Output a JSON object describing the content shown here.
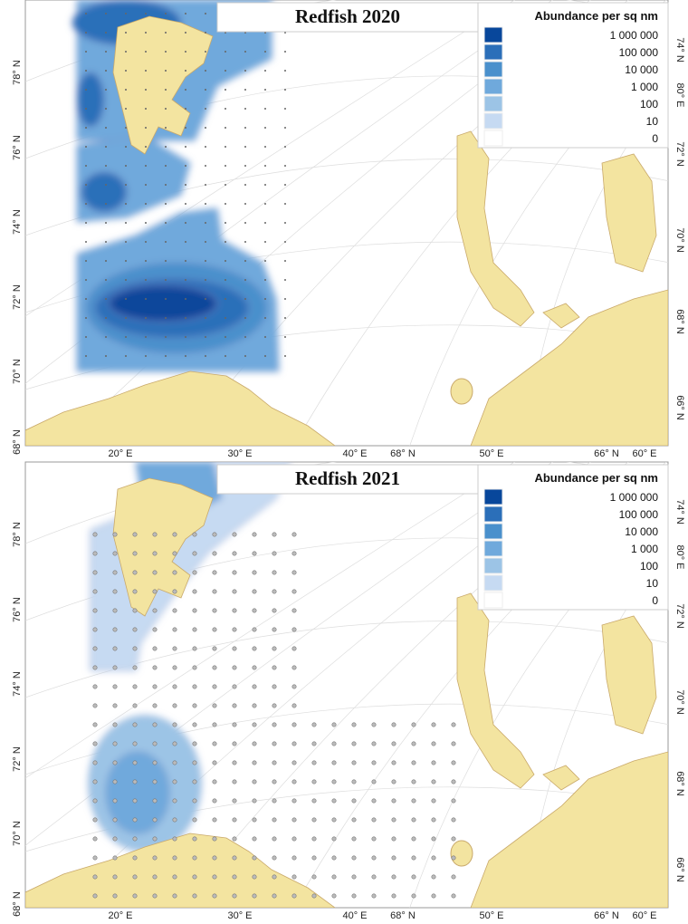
{
  "maps": [
    {
      "title": "Redfish 2020",
      "legend": {
        "title": "Abundance per sq nm",
        "items": [
          {
            "label": "1 000 000",
            "color": "#08479b"
          },
          {
            "label": "100 000",
            "color": "#2b6fb9"
          },
          {
            "label": "10 000",
            "color": "#4a90cc"
          },
          {
            "label": "1 000",
            "color": "#6fa9dc"
          },
          {
            "label": "100",
            "color": "#9cc4e6"
          },
          {
            "label": "10",
            "color": "#c6daf2"
          },
          {
            "label": "0",
            "color": "#ffffff"
          }
        ]
      },
      "left_labels": [
        "78° N",
        "76° N",
        "74° N",
        "72° N",
        "70° N",
        "68° N"
      ],
      "bottom_labels": [
        "20° E",
        "30° E",
        "40° E",
        "68° N",
        "50° E",
        "66° N",
        "60° E"
      ],
      "right_labels": [
        "74° N",
        "80° E",
        "72° N",
        "70° N",
        "68° N",
        "66° N"
      ]
    },
    {
      "title": "Redfish 2021",
      "legend": {
        "title": "Abundance per sq nm",
        "items": [
          {
            "label": "1 000 000",
            "color": "#08479b"
          },
          {
            "label": "100 000",
            "color": "#2b6fb9"
          },
          {
            "label": "10 000",
            "color": "#4a90cc"
          },
          {
            "label": "1 000",
            "color": "#6fa9dc"
          },
          {
            "label": "100",
            "color": "#9cc4e6"
          },
          {
            "label": "10",
            "color": "#c6daf2"
          },
          {
            "label": "0",
            "color": "#ffffff"
          }
        ]
      },
      "left_labels": [
        "78° N",
        "76° N",
        "74° N",
        "72° N",
        "70° N",
        "68° N"
      ],
      "bottom_labels": [
        "20° E",
        "30° E",
        "40° E",
        "68° N",
        "50° E",
        "66° N",
        "60° E"
      ],
      "right_labels": [
        "74° N",
        "80° E",
        "72° N",
        "70° N",
        "68° N",
        "66° N"
      ]
    }
  ]
}
